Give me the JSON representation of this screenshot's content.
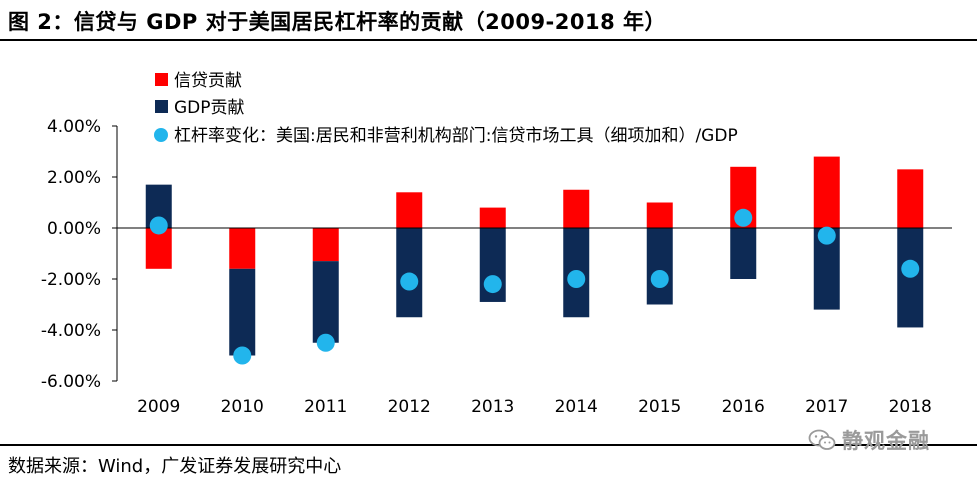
{
  "figure_title": "图 2：信贷与 GDP 对于美国居民杠杆率的贡献（2009-2018 年）",
  "source_note": "数据来源：Wind，广发证券发展研究中心",
  "watermark": "静观金融",
  "colors": {
    "credit": "#ff0000",
    "gdp": "#0d2a55",
    "leverage": "#22b5ec",
    "axis": "#000000"
  },
  "chart_data": {
    "type": "bar",
    "stacked": true,
    "categories": [
      "2009",
      "2010",
      "2011",
      "2012",
      "2013",
      "2014",
      "2015",
      "2016",
      "2017",
      "2018"
    ],
    "series": [
      {
        "name": "信贷贡献",
        "kind": "bar",
        "values": [
          -1.6,
          -1.6,
          -1.3,
          1.4,
          0.8,
          1.5,
          1.0,
          2.4,
          2.8,
          2.3
        ]
      },
      {
        "name": "GDP贡献",
        "kind": "bar",
        "values": [
          1.7,
          -3.4,
          -3.2,
          -3.5,
          -2.9,
          -3.5,
          -3.0,
          -2.0,
          -3.2,
          -3.9
        ]
      },
      {
        "name": "杠杆率变化：美国:居民和非营利机构部门:信贷市场工具（细项加和）/GDP",
        "kind": "dot",
        "values": [
          0.1,
          -5.0,
          -4.5,
          -2.1,
          -2.2,
          -2.0,
          -2.0,
          0.4,
          -0.3,
          -1.6
        ]
      }
    ],
    "ylim": [
      -6,
      4
    ],
    "yticks": [
      4,
      2,
      0,
      -2,
      -4,
      -6
    ],
    "ytick_labels": [
      "4.00%",
      "2.00%",
      "0.00%",
      "-2.00%",
      "-4.00%",
      "-6.00%"
    ],
    "legend_position": "top-left",
    "grid": false
  }
}
